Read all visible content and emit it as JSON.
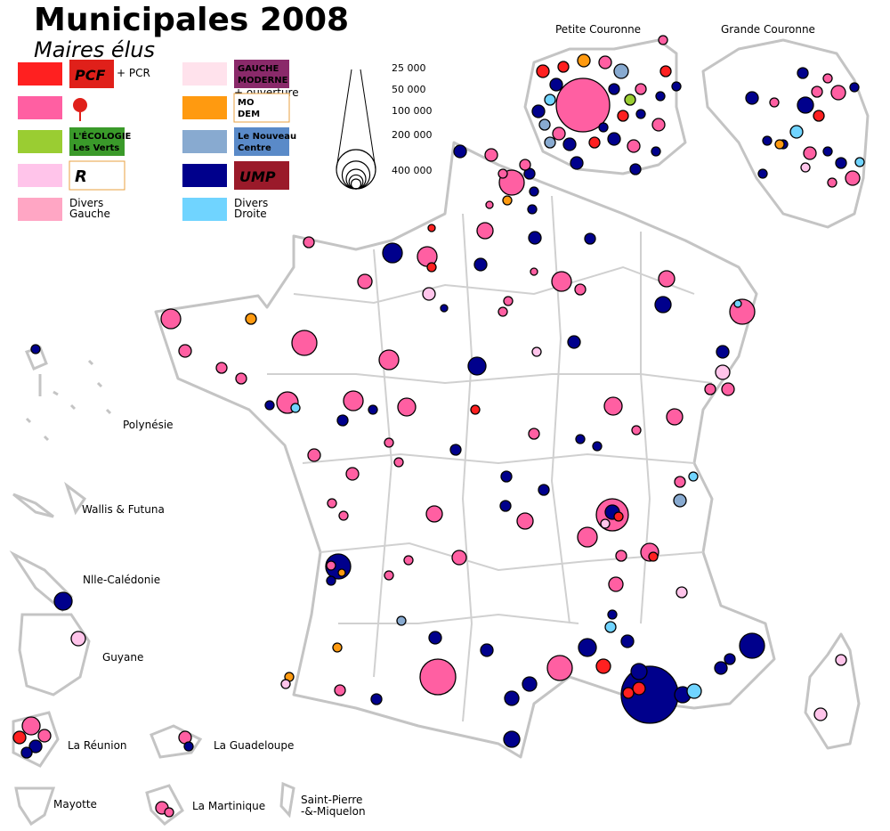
{
  "header": {
    "title": "Municipales 2008",
    "subtitle": "Maires élus"
  },
  "legend": {
    "items": [
      {
        "color": "#ff2020",
        "logo": "PCF",
        "note": "+ PCR"
      },
      {
        "color": "#ff5fa2"
      },
      {
        "color": "#9acd32",
        "logo": "L'ÉCOLOGIE",
        "logo2": "Les Verts"
      },
      {
        "color": "#ffc4ea",
        "logo": "R"
      },
      {
        "color": "#ffa6c4",
        "label": "Divers",
        "label2": "Gauche"
      },
      {
        "color": "#ffe2ec",
        "logo": "GAUCHE",
        "logo2": "MODERNE",
        "note": "+ ouverture"
      },
      {
        "color": "#ff9a10",
        "logo": "MO",
        "logo2": "DEM"
      },
      {
        "color": "#88aad0",
        "logo": "Le Nouveau",
        "logo2": "Centre"
      },
      {
        "color": "#00008c",
        "logo": "UMP"
      },
      {
        "color": "#70d4ff",
        "label": "Divers",
        "label2": "Droite"
      }
    ]
  },
  "size_legend": {
    "values": [
      {
        "value": 25000,
        "label": "25 000"
      },
      {
        "value": 50000,
        "label": "50 000"
      },
      {
        "value": 100000,
        "label": "100 000"
      },
      {
        "value": 200000,
        "label": "200 000"
      },
      {
        "value": 400000,
        "label": "400 000"
      }
    ]
  },
  "regions": {
    "petite_couronne": "Petite Couronne",
    "grande_couronne": "Grande Couronne",
    "polynesie": "Polynésie",
    "wallis": "Wallis & Futuna",
    "caledonie": "Nlle-Calédonie",
    "guyane": "Guyane",
    "reunion": "La Réunion",
    "guadeloupe": "La Guadeloupe",
    "mayotte": "Mayotte",
    "martinique": "La Martinique",
    "spm": [
      "Saint-Pierre",
      "-&-Miquelon"
    ]
  }
}
